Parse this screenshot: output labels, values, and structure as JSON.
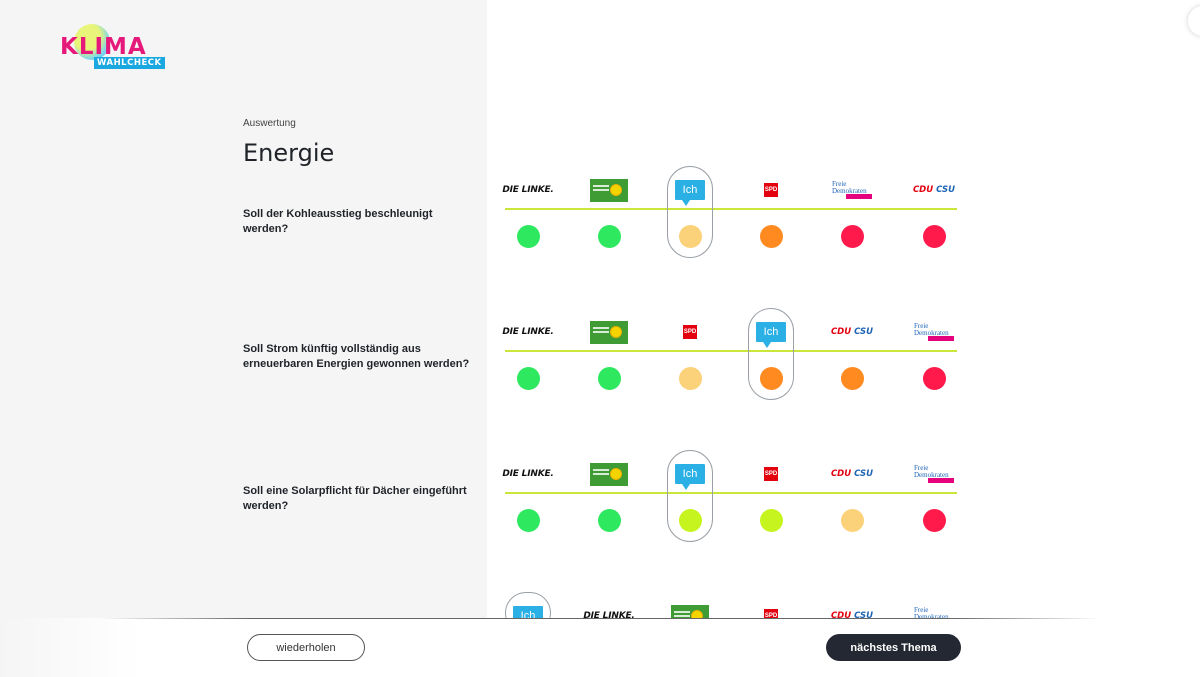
{
  "brand": {
    "logo_word": "KLIMA",
    "logo_sub": "WAHLCHECK"
  },
  "header": {
    "section_label": "Auswertung",
    "title": "Energie"
  },
  "party_labels": {
    "linke": "DIE LINKE.",
    "spd": "SPD",
    "cdu_red": "CDU",
    "cdu_blue": "CSU",
    "fdp_text": "Freie Demokraten",
    "ich": "Ich"
  },
  "colors": {
    "strong_yes": "#2ee85f",
    "yes": "#c6f41e",
    "neutral": "#fbd27a",
    "no": "#ff8a1f",
    "strong_no": "#ff1a4b",
    "line": "#c9e63a",
    "ich_blue": "#2ab0e4"
  },
  "questions": [
    {
      "text": "Soll der Kohleausstieg beschleunigt werden?",
      "parties": [
        "linke",
        "gruene",
        "ich",
        "spd",
        "fdp",
        "cdu"
      ],
      "answers": [
        "strong_yes",
        "strong_yes",
        "neutral",
        "no",
        "strong_no",
        "strong_no"
      ]
    },
    {
      "text": "Soll Strom künftig vollständig aus erneuerbaren Energien gewonnen werden?",
      "parties": [
        "linke",
        "gruene",
        "spd",
        "ich",
        "cdu",
        "fdp"
      ],
      "answers": [
        "strong_yes",
        "strong_yes",
        "neutral",
        "no",
        "no",
        "strong_no"
      ]
    },
    {
      "text": "Soll eine Solarpflicht für Dächer eingeführt werden?",
      "parties": [
        "linke",
        "gruene",
        "ich",
        "spd",
        "cdu",
        "fdp"
      ],
      "answers": [
        "strong_yes",
        "strong_yes",
        "yes",
        "yes",
        "neutral",
        "strong_no"
      ]
    },
    {
      "text": "",
      "parties": [
        "ich",
        "linke",
        "gruene",
        "spd",
        "cdu",
        "fdp"
      ],
      "answers": []
    }
  ],
  "footer": {
    "repeat_label": "wiederholen",
    "next_label": "nächstes Thema"
  }
}
